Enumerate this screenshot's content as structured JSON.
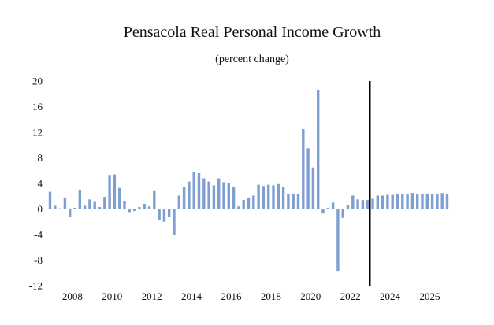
{
  "chart_data": {
    "type": "bar",
    "title": "Pensacola Real Personal Income Growth",
    "subtitle": "(percent change)",
    "xlabel": "",
    "ylabel": "",
    "ylim": [
      -12,
      20
    ],
    "yticks": [
      20,
      16,
      12,
      8,
      4,
      0,
      -4,
      -8,
      -12
    ],
    "ytick_labels": [
      "20",
      "16",
      "12",
      "8",
      "4",
      "0",
      "-4",
      "-8",
      "-12"
    ],
    "xticks": [
      "2008",
      "2010",
      "2012",
      "2014",
      "2016",
      "2018",
      "2020",
      "2022",
      "2024",
      "2026"
    ],
    "grid": false,
    "forecast_divider_label": "2023Q3",
    "bar_color": "#7f9fd3",
    "divider_color": "#000000",
    "series": [
      {
        "name": "Real Personal Income Growth",
        "categories": [
          "2007Q2",
          "2007Q3",
          "2007Q4",
          "2008Q1",
          "2008Q2",
          "2008Q3",
          "2008Q4",
          "2009Q1",
          "2009Q2",
          "2009Q3",
          "2009Q4",
          "2010Q1",
          "2010Q2",
          "2010Q3",
          "2010Q4",
          "2011Q1",
          "2011Q2",
          "2011Q3",
          "2011Q4",
          "2012Q1",
          "2012Q2",
          "2012Q3",
          "2012Q4",
          "2013Q1",
          "2013Q2",
          "2013Q3",
          "2013Q4",
          "2014Q1",
          "2014Q2",
          "2014Q3",
          "2014Q4",
          "2015Q1",
          "2015Q2",
          "2015Q3",
          "2015Q4",
          "2016Q1",
          "2016Q2",
          "2016Q3",
          "2016Q4",
          "2017Q1",
          "2017Q2",
          "2017Q3",
          "2017Q4",
          "2018Q1",
          "2018Q2",
          "2018Q3",
          "2018Q4",
          "2019Q1",
          "2019Q2",
          "2019Q3",
          "2019Q4",
          "2020Q1",
          "2020Q2",
          "2020Q3",
          "2020Q4",
          "2021Q1",
          "2021Q2",
          "2021Q3",
          "2021Q4",
          "2022Q1",
          "2022Q2",
          "2022Q3",
          "2022Q4",
          "2023Q1",
          "2023Q2",
          "2023Q3",
          "2023Q4",
          "2024Q1",
          "2024Q2",
          "2024Q3",
          "2024Q4",
          "2025Q1",
          "2025Q2",
          "2025Q3",
          "2025Q4",
          "2026Q1",
          "2026Q2",
          "2026Q3",
          "2026Q4",
          "2027Q1",
          "2027Q2"
        ],
        "values": [
          2.7,
          0.5,
          0.1,
          1.8,
          -1.3,
          0.2,
          2.9,
          0.5,
          1.5,
          1.1,
          0.3,
          1.9,
          5.2,
          5.4,
          3.3,
          1.2,
          -0.6,
          -0.3,
          0.3,
          0.8,
          0.4,
          2.8,
          -1.7,
          -2.0,
          -1.3,
          -4.0,
          2.1,
          3.5,
          4.3,
          5.8,
          5.6,
          4.8,
          4.3,
          3.7,
          4.8,
          4.2,
          4.0,
          3.5,
          0.4,
          1.4,
          1.8,
          2.1,
          3.8,
          3.6,
          3.8,
          3.7,
          3.9,
          3.4,
          2.3,
          2.4,
          2.4,
          12.5,
          9.5,
          6.5,
          18.6,
          -0.7,
          0.2,
          1.0,
          -9.8,
          -1.4,
          0.6,
          2.1,
          1.5,
          1.4,
          1.4,
          1.6,
          2.1,
          2.1,
          2.2,
          2.2,
          2.3,
          2.4,
          2.4,
          2.5,
          2.4,
          2.3,
          2.3,
          2.3,
          2.3,
          2.5,
          2.4
        ]
      }
    ]
  }
}
